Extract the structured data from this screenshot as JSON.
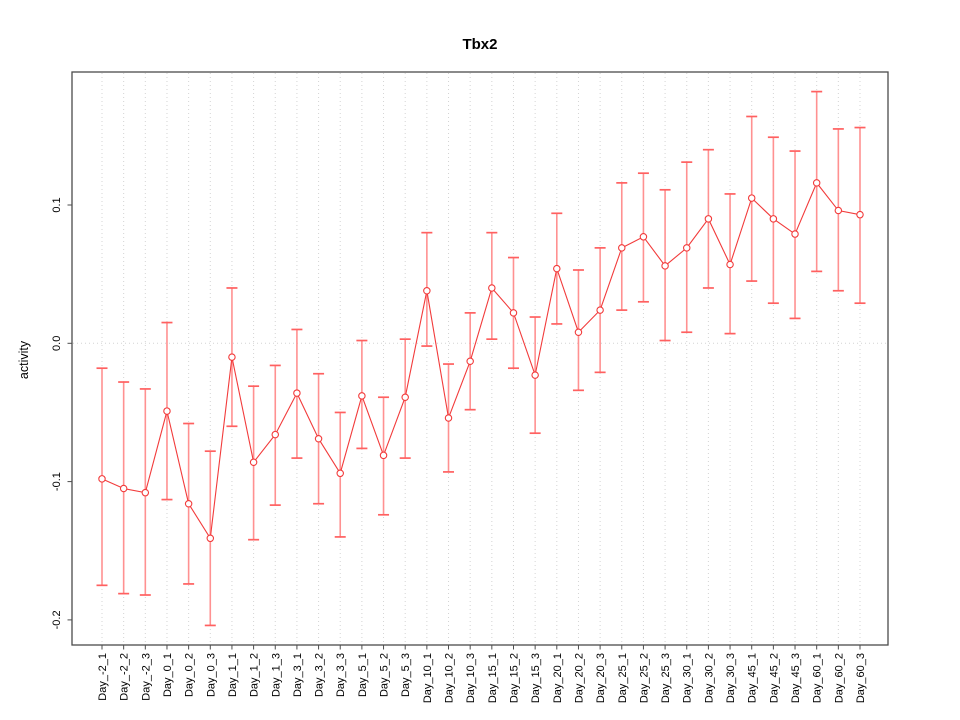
{
  "page": {
    "background": "#ffffff"
  },
  "chart_data": {
    "type": "line",
    "title": "Tbx2",
    "xlabel": "",
    "ylabel": "activity",
    "legend": "none",
    "grid": {
      "vertical": "dotted line at every category",
      "horizontal": "dotted line at y=0 only"
    },
    "ylim": [
      -0.218,
      0.196
    ],
    "yticks": [
      -0.2,
      -0.1,
      0,
      0.1
    ],
    "categories": [
      "Day_-2_1",
      "Day_-2_2",
      "Day_-2_3",
      "Day_0_1",
      "Day_0_2",
      "Day_0_3",
      "Day_1_1",
      "Day_1_2",
      "Day_1_3",
      "Day_3_1",
      "Day_3_2",
      "Day_3_3",
      "Day_5_1",
      "Day_5_2",
      "Day_5_3",
      "Day_10_1",
      "Day_10_2",
      "Day_10_3",
      "Day_15_1",
      "Day_15_2",
      "Day_15_3",
      "Day_20_1",
      "Day_20_2",
      "Day_20_3",
      "Day_25_1",
      "Day_25_2",
      "Day_25_3",
      "Day_30_1",
      "Day_30_2",
      "Day_30_3",
      "Day_45_1",
      "Day_45_2",
      "Day_45_3",
      "Day_60_1",
      "Day_60_2",
      "Day_60_3"
    ],
    "series": [
      {
        "name": "Tbx2 activity",
        "marker": "open-circle",
        "values": [
          -0.098,
          -0.105,
          -0.108,
          -0.049,
          -0.116,
          -0.141,
          -0.01,
          -0.086,
          -0.066,
          -0.036,
          -0.069,
          -0.094,
          -0.038,
          -0.081,
          -0.039,
          0.038,
          -0.054,
          -0.013,
          0.04,
          0.022,
          -0.023,
          0.054,
          0.008,
          0.024,
          0.069,
          0.077,
          0.056,
          0.069,
          0.09,
          0.057,
          0.105,
          0.09,
          0.079,
          0.116,
          0.096,
          0.093
        ],
        "err_high": [
          -0.018,
          -0.028,
          -0.033,
          0.015,
          -0.058,
          -0.078,
          0.04,
          -0.031,
          -0.016,
          0.01,
          -0.022,
          -0.05,
          0.002,
          -0.039,
          0.003,
          0.08,
          -0.015,
          0.022,
          0.08,
          0.062,
          0.019,
          0.094,
          0.053,
          0.069,
          0.116,
          0.123,
          0.111,
          0.131,
          0.14,
          0.108,
          0.164,
          0.149,
          0.139,
          0.182,
          0.155,
          0.156
        ],
        "err_low": [
          -0.175,
          -0.181,
          -0.182,
          -0.113,
          -0.174,
          -0.204,
          -0.06,
          -0.142,
          -0.117,
          -0.083,
          -0.116,
          -0.14,
          -0.076,
          -0.124,
          -0.083,
          -0.002,
          -0.093,
          -0.048,
          0.003,
          -0.018,
          -0.065,
          0.014,
          -0.034,
          -0.021,
          0.024,
          0.03,
          0.002,
          0.008,
          0.04,
          0.007,
          0.045,
          0.029,
          0.018,
          0.052,
          0.038,
          0.029
        ]
      }
    ],
    "colors": {
      "series_line": "#f23b3b",
      "point_stroke": "#f23b3b",
      "point_fill": "#ffffff",
      "error_bar": "#ff9191",
      "error_cap": "#ff6060",
      "gridline": "#d4d4d4",
      "axis": "#4c4c4c",
      "text": "#000000"
    }
  }
}
